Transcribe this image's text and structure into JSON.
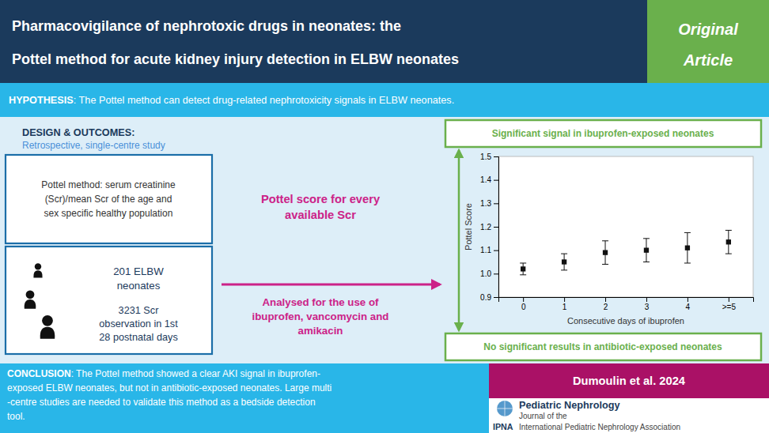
{
  "chart_data": {
    "type": "scatter",
    "title": "Pharmacovigilance of nephrotoxic drugs in neonates: the\nPottel method for acute kidney injury detection in ELBW neonates",
    "xlabel": "Consecutive days of ibuprofen",
    "ylabel": "Pottel Score",
    "x": [
      0,
      1,
      2,
      3,
      4,
      5
    ],
    "values": [
      1.02,
      1.05,
      1.09,
      1.1,
      1.11,
      1.135
    ],
    "error_low": [
      0.025,
      0.035,
      0.05,
      0.05,
      0.065,
      0.05
    ],
    "error_high": [
      0.025,
      0.035,
      0.05,
      0.05,
      0.065,
      0.05
    ],
    "color": "#111111",
    "marker": "square",
    "xlim": [
      -0.6,
      5.6
    ],
    "xticks": [
      0,
      1,
      2,
      3,
      4,
      {
        "value": 5,
        "label": ">=5"
      }
    ],
    "ylim": [
      0.9,
      1.5
    ],
    "yticks": [
      0.9,
      {
        "value": 1.0,
        "label": "1.0"
      },
      1.1,
      1.2,
      1.3,
      1.4,
      1.5
    ],
    "grid": false,
    "annotations": [
      "Original\nArticle",
      "HYPOTHESIS",
      ": The Pottel method can detect drug-related nephrotoxicity signals in ELBW neonates.",
      "DESIGN & OUTCOMES:",
      "Retrospective, single-centre study",
      "Pottel method: serum creatinine\n(Scr)/mean Scr of the age and\nsex specific healthy population",
      "201 ELBW\nneonates",
      "3231 Scr\nobservation in 1st\n28 postnatal days",
      "Pottel score for every\navailable Scr",
      "Analysed for the use of\nibuprofen, vancomycin and\namikacin",
      "Significant signal in ibuprofen-exposed neonates",
      "No significant results in antibiotic-exposed neonates",
      "CONCLUSION",
      ": The Pottel method showed a clear AKI signal in ibuprofen-",
      "exposed ELBW neonates, but not in antibiotic-exposed neonates. Large multi",
      "-centre studies are needed to validate this method as a bedside detection",
      "tool.",
      "Dumoulin et al. 2024",
      "Pediatric Nephrology",
      "Journal of the",
      "IPNA",
      "International Pediatric Nephrology Association"
    ]
  }
}
